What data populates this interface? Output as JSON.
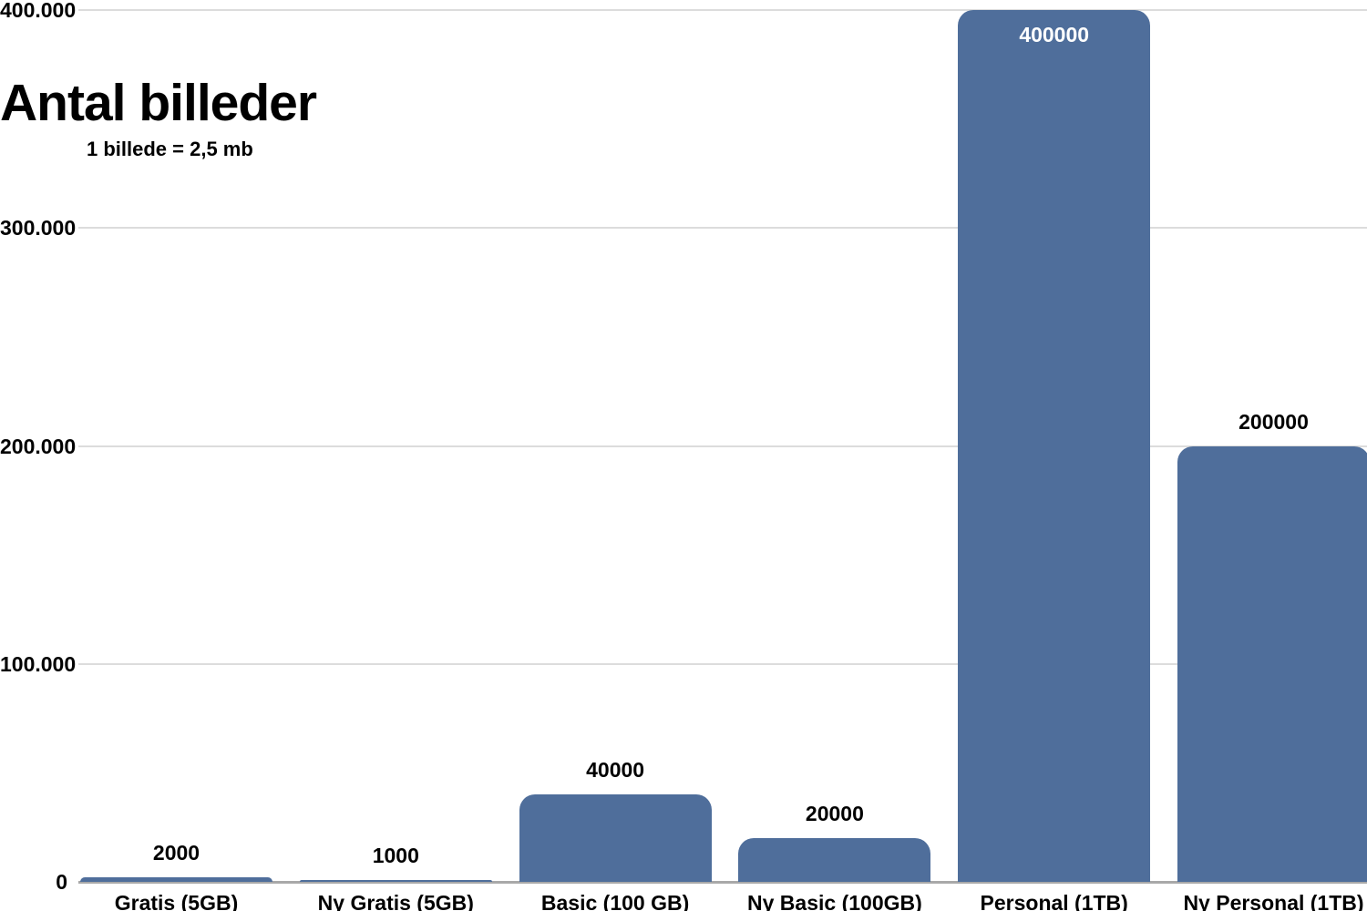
{
  "chart_data": {
    "type": "bar",
    "title": "Antal billeder",
    "subtitle": "1 billede = 2,5 mb",
    "categories": [
      "Gratis (5GB)",
      "Ny Gratis (5GB)",
      "Basic (100 GB)",
      "Ny Basic (100GB)",
      "Personal (1TB)",
      "Ny Personal (1TB)"
    ],
    "values": [
      2000,
      1000,
      40000,
      20000,
      400000,
      200000
    ],
    "value_labels": [
      "2000",
      "1000",
      "40000",
      "20000",
      "400000",
      "200000"
    ],
    "y_axis": {
      "tick_labels": [
        "400.000",
        "300.000",
        "200.000",
        "100.000",
        "0"
      ],
      "tick_values": [
        400000,
        300000,
        200000,
        100000,
        0
      ]
    },
    "ylim": [
      0,
      400000
    ],
    "grid": true,
    "legend": false,
    "colors": {
      "bar": "#4F6E9B",
      "gridline": "#DCDCDC",
      "axis_line": "#A9A9A9",
      "label_outside": "#000000",
      "label_inside": "#FFFFFF",
      "background": "#FFFFFF"
    }
  }
}
